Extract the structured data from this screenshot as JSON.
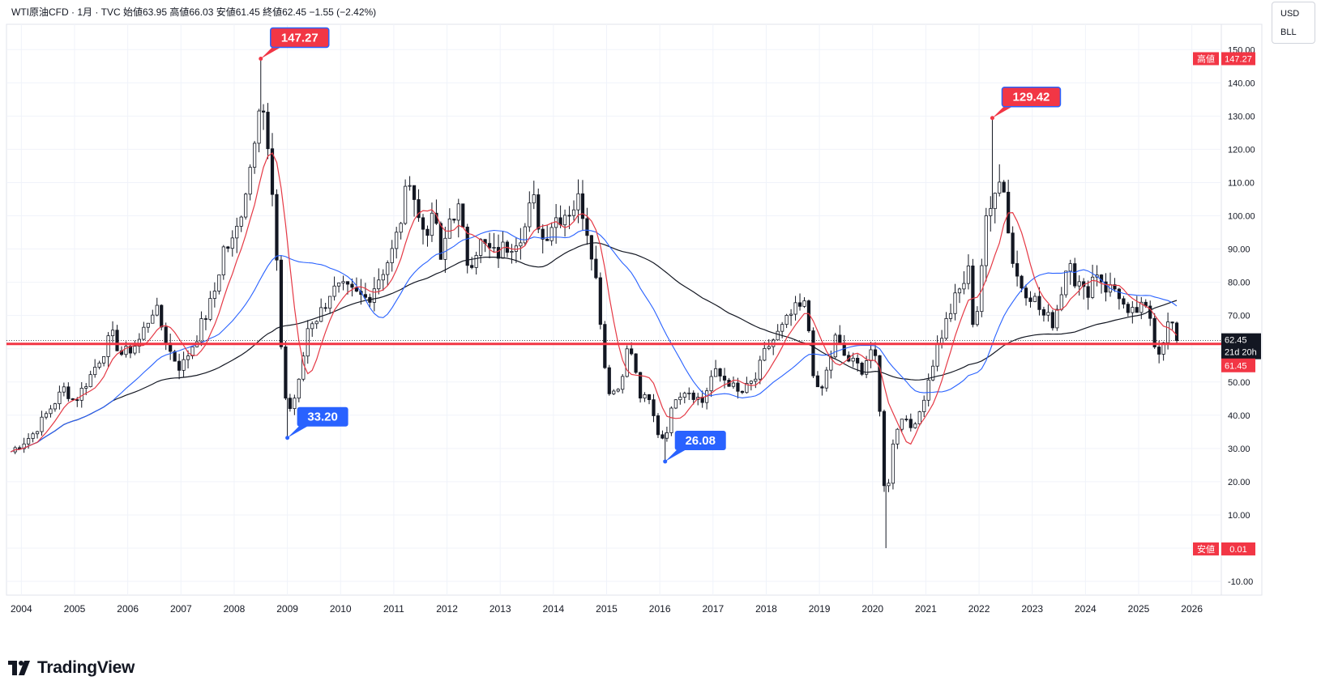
{
  "header": {
    "text": "WTI原油CFD · 1月 · TVC  始値63.95  高値66.03  安値61.45  終値62.45  −1.55 (−2.42%)"
  },
  "units": {
    "currency": "USD",
    "unit": "BLL"
  },
  "branding": {
    "logo_text": "TradingView"
  },
  "colors": {
    "up": "#ffffff",
    "down": "#131722",
    "ma_fast": "#e53945",
    "ma_mid": "#2962ff",
    "ma_slow": "#131722",
    "hline": "#f23645",
    "callout_high": "#f23645",
    "callout_low": "#2962ff"
  },
  "chart_data": {
    "type": "candlestick",
    "instrument": "WTI原油CFD",
    "interval": "1月",
    "source": "TVC",
    "y_axis": {
      "ticks": [
        -10,
        0,
        10,
        20,
        30,
        40,
        50,
        60,
        70,
        80,
        90,
        100,
        110,
        120,
        130,
        140,
        150
      ]
    },
    "x_axis": {
      "ticks": [
        "2004",
        "2005",
        "2006",
        "2007",
        "2008",
        "2009",
        "2010",
        "2011",
        "2012",
        "2013",
        "2014",
        "2015",
        "2016",
        "2017",
        "2018",
        "2019",
        "2020",
        "2021",
        "2022",
        "2023",
        "2024",
        "2025",
        "2026"
      ]
    },
    "labels": {
      "high_tag": "高値",
      "high_value": "147.27",
      "low_tag": "安値",
      "low_value": "0.01",
      "last_price": "62.45",
      "countdown": "21d 20h",
      "day_low": "61.45"
    },
    "callouts": [
      {
        "text": "147.27",
        "value": 147.27,
        "t": 2008.5,
        "kind": "high"
      },
      {
        "text": "33.20",
        "value": 33.2,
        "t": 2009.0,
        "kind": "low"
      },
      {
        "text": "26.08",
        "value": 26.08,
        "t": 2016.1,
        "kind": "low"
      },
      {
        "text": "129.42",
        "value": 129.42,
        "t": 2022.25,
        "kind": "high"
      }
    ],
    "horizontal_line": 61.45,
    "close_anchors": [
      [
        2003.8,
        29
      ],
      [
        2004.2,
        34
      ],
      [
        2004.5,
        41
      ],
      [
        2004.8,
        48
      ],
      [
        2005.0,
        44
      ],
      [
        2005.3,
        52
      ],
      [
        2005.7,
        64
      ],
      [
        2005.9,
        58
      ],
      [
        2006.2,
        62
      ],
      [
        2006.5,
        73
      ],
      [
        2006.8,
        59
      ],
      [
        2007.0,
        54
      ],
      [
        2007.3,
        64
      ],
      [
        2007.6,
        75
      ],
      [
        2007.8,
        90
      ],
      [
        2008.0,
        92
      ],
      [
        2008.3,
        115
      ],
      [
        2008.5,
        140
      ],
      [
        2008.6,
        124
      ],
      [
        2008.75,
        100
      ],
      [
        2008.85,
        68
      ],
      [
        2008.95,
        48
      ],
      [
        2009.0,
        40
      ],
      [
        2009.2,
        48
      ],
      [
        2009.4,
        68
      ],
      [
        2009.6,
        70
      ],
      [
        2009.8,
        77
      ],
      [
        2010.0,
        78
      ],
      [
        2010.3,
        76
      ],
      [
        2010.5,
        75
      ],
      [
        2010.8,
        84
      ],
      [
        2011.0,
        90
      ],
      [
        2011.2,
        104
      ],
      [
        2011.3,
        113
      ],
      [
        2011.5,
        96
      ],
      [
        2011.8,
        98
      ],
      [
        2011.9,
        82
      ],
      [
        2012.0,
        98
      ],
      [
        2012.2,
        103
      ],
      [
        2012.4,
        85
      ],
      [
        2012.6,
        92
      ],
      [
        2012.9,
        88
      ],
      [
        2013.2,
        92
      ],
      [
        2013.5,
        97
      ],
      [
        2013.6,
        106
      ],
      [
        2013.8,
        93
      ],
      [
        2014.0,
        99
      ],
      [
        2014.3,
        102
      ],
      [
        2014.5,
        105
      ],
      [
        2014.7,
        92
      ],
      [
        2014.85,
        75
      ],
      [
        2014.95,
        58
      ],
      [
        2015.0,
        48
      ],
      [
        2015.2,
        47
      ],
      [
        2015.4,
        60
      ],
      [
        2015.5,
        58
      ],
      [
        2015.6,
        46
      ],
      [
        2015.8,
        44
      ],
      [
        2016.0,
        33
      ],
      [
        2016.1,
        34
      ],
      [
        2016.3,
        46
      ],
      [
        2016.5,
        48
      ],
      [
        2016.8,
        44
      ],
      [
        2017.0,
        53
      ],
      [
        2017.3,
        50
      ],
      [
        2017.5,
        46
      ],
      [
        2017.8,
        51
      ],
      [
        2018.0,
        60
      ],
      [
        2018.3,
        66
      ],
      [
        2018.5,
        71
      ],
      [
        2018.75,
        73
      ],
      [
        2018.9,
        51
      ],
      [
        2019.0,
        45
      ],
      [
        2019.3,
        63
      ],
      [
        2019.5,
        57
      ],
      [
        2019.8,
        54
      ],
      [
        2020.0,
        61
      ],
      [
        2020.1,
        51
      ],
      [
        2020.2,
        20
      ],
      [
        2020.3,
        19
      ],
      [
        2020.4,
        35
      ],
      [
        2020.6,
        40
      ],
      [
        2020.8,
        36
      ],
      [
        2021.0,
        48
      ],
      [
        2021.2,
        60
      ],
      [
        2021.5,
        73
      ],
      [
        2021.8,
        83
      ],
      [
        2021.9,
        66
      ],
      [
        2022.0,
        75
      ],
      [
        2022.1,
        96
      ],
      [
        2022.2,
        100
      ],
      [
        2022.35,
        115
      ],
      [
        2022.5,
        105
      ],
      [
        2022.6,
        88
      ],
      [
        2022.75,
        80
      ],
      [
        2023.0,
        76
      ],
      [
        2023.2,
        70
      ],
      [
        2023.4,
        68
      ],
      [
        2023.6,
        81
      ],
      [
        2023.7,
        90
      ],
      [
        2023.8,
        81
      ],
      [
        2024.0,
        76
      ],
      [
        2024.2,
        84
      ],
      [
        2024.4,
        78
      ],
      [
        2024.6,
        78
      ],
      [
        2024.8,
        69
      ],
      [
        2025.0,
        72
      ],
      [
        2025.2,
        71
      ],
      [
        2025.35,
        58
      ],
      [
        2025.5,
        65
      ],
      [
        2025.6,
        69
      ],
      [
        2025.7,
        64
      ],
      [
        2025.75,
        62.45
      ]
    ]
  }
}
